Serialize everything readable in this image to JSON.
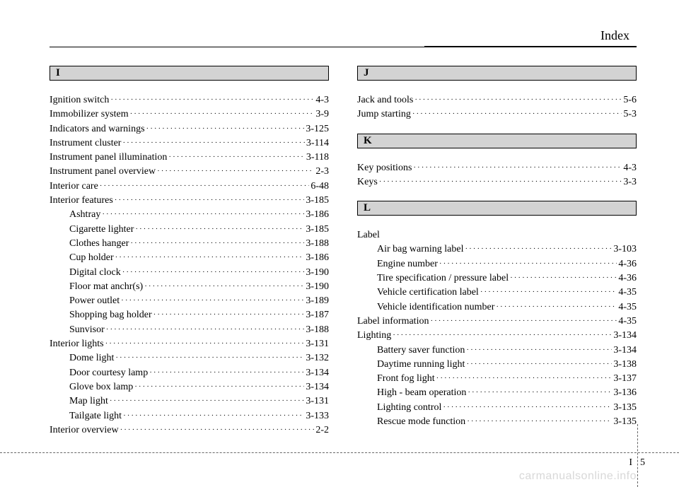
{
  "header": {
    "title": "Index"
  },
  "footer": {
    "section": "I",
    "page": "5",
    "watermark": "carmanualsonline.info"
  },
  "left": {
    "letter": "I",
    "entries": [
      {
        "label": "Ignition switch",
        "page": "4-3"
      },
      {
        "label": "Immobilizer system",
        "page": "3-9"
      },
      {
        "label": "Indicators and warnings",
        "page": "3-125"
      },
      {
        "label": "Instrument cluster",
        "page": "3-114"
      },
      {
        "label": "Instrument panel illumination",
        "page": "3-118"
      },
      {
        "label": "Instrument panel overview",
        "page": "2-3"
      },
      {
        "label": "Interior care",
        "page": "6-48"
      },
      {
        "label": "Interior features",
        "page": "3-185"
      },
      {
        "label": "Ashtray",
        "page": "3-186",
        "indent": true
      },
      {
        "label": "Cigarette lighter",
        "page": "3-185",
        "indent": true
      },
      {
        "label": "Clothes hanger",
        "page": "3-188",
        "indent": true
      },
      {
        "label": "Cup holder",
        "page": "3-186",
        "indent": true
      },
      {
        "label": "Digital clock",
        "page": "3-190",
        "indent": true
      },
      {
        "label": "Floor mat anchr(s)",
        "page": "3-190",
        "indent": true
      },
      {
        "label": "Power outlet",
        "page": "3-189",
        "indent": true
      },
      {
        "label": "Shopping bag holder",
        "page": "3-187",
        "indent": true
      },
      {
        "label": "Sunvisor",
        "page": "3-188",
        "indent": true
      },
      {
        "label": "Interior lights",
        "page": "3-131"
      },
      {
        "label": "Dome light",
        "page": "3-132",
        "indent": true
      },
      {
        "label": "Door courtesy lamp",
        "page": "3-134",
        "indent": true
      },
      {
        "label": "Glove box lamp",
        "page": "3-134",
        "indent": true
      },
      {
        "label": "Map light",
        "page": "3-131",
        "indent": true
      },
      {
        "label": "Tailgate light",
        "page": "3-133",
        "indent": true
      },
      {
        "label": "Interior overview",
        "page": "2-2"
      }
    ]
  },
  "right": {
    "groups": [
      {
        "letter": "J",
        "entries": [
          {
            "label": "Jack and tools",
            "page": "5-6"
          },
          {
            "label": "Jump starting",
            "page": "5-3"
          }
        ]
      },
      {
        "letter": "K",
        "entries": [
          {
            "label": "Key positions",
            "page": "4-3"
          },
          {
            "label": "Keys",
            "page": "3-3"
          }
        ]
      },
      {
        "letter": "L",
        "sectionLabel": "Label",
        "entries": [
          {
            "label": "Air bag warning label",
            "page": "3-103",
            "indent": true
          },
          {
            "label": "Engine number",
            "page": "4-36",
            "indent": true
          },
          {
            "label": "Tire specification / pressure label",
            "page": "4-36",
            "indent": true
          },
          {
            "label": "Vehicle certification label",
            "page": "4-35",
            "indent": true
          },
          {
            "label": "Vehicle identification number",
            "page": "4-35",
            "indent": true
          },
          {
            "label": "Label information",
            "page": "4-35"
          },
          {
            "label": "Lighting",
            "page": "3-134"
          },
          {
            "label": "Battery saver function",
            "page": "3-134",
            "indent": true
          },
          {
            "label": "Daytime running light",
            "page": "3-138",
            "indent": true
          },
          {
            "label": "Front fog light",
            "page": "3-137",
            "indent": true
          },
          {
            "label": "High - beam operation",
            "page": "3-136",
            "indent": true
          },
          {
            "label": "Lighting control",
            "page": "3-135",
            "indent": true
          },
          {
            "label": "Rescue mode function",
            "page": "3-135",
            "indent": true
          }
        ]
      }
    ]
  }
}
